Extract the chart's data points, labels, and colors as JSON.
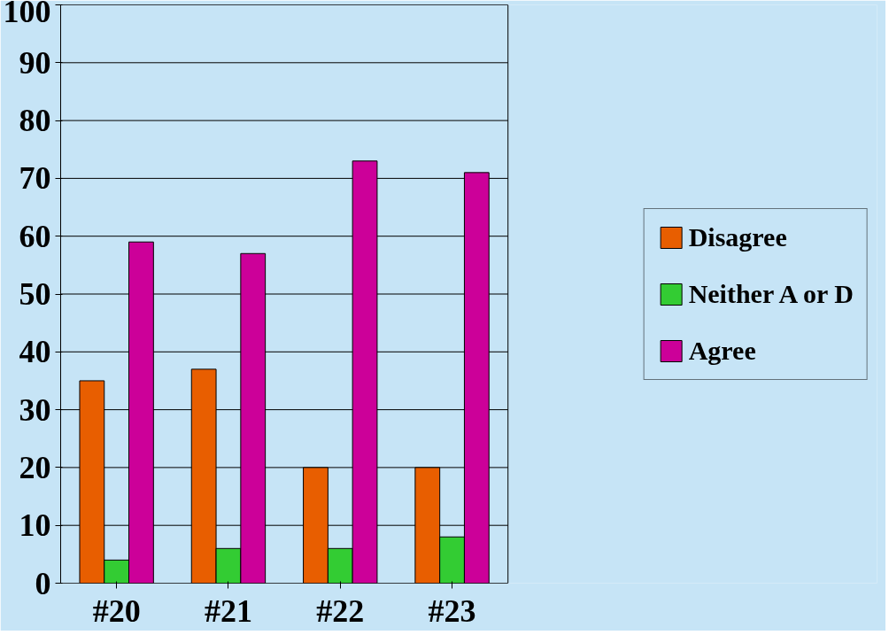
{
  "chart_data": {
    "type": "bar",
    "categories": [
      "#20",
      "#21",
      "#22",
      "#23"
    ],
    "series": [
      {
        "name": "Disagree",
        "color": "#e85e00",
        "values": [
          35,
          37,
          20,
          20
        ]
      },
      {
        "name": "Neither A or D",
        "color": "#33cc33",
        "values": [
          4,
          6,
          6,
          8
        ]
      },
      {
        "name": "Agree",
        "color": "#cc0099",
        "values": [
          59,
          57,
          73,
          71
        ]
      }
    ],
    "ylim": [
      0,
      100
    ],
    "yticks": [
      0,
      10,
      20,
      30,
      40,
      50,
      60,
      70,
      80,
      90,
      100
    ],
    "grid": "y",
    "legend": "right"
  }
}
